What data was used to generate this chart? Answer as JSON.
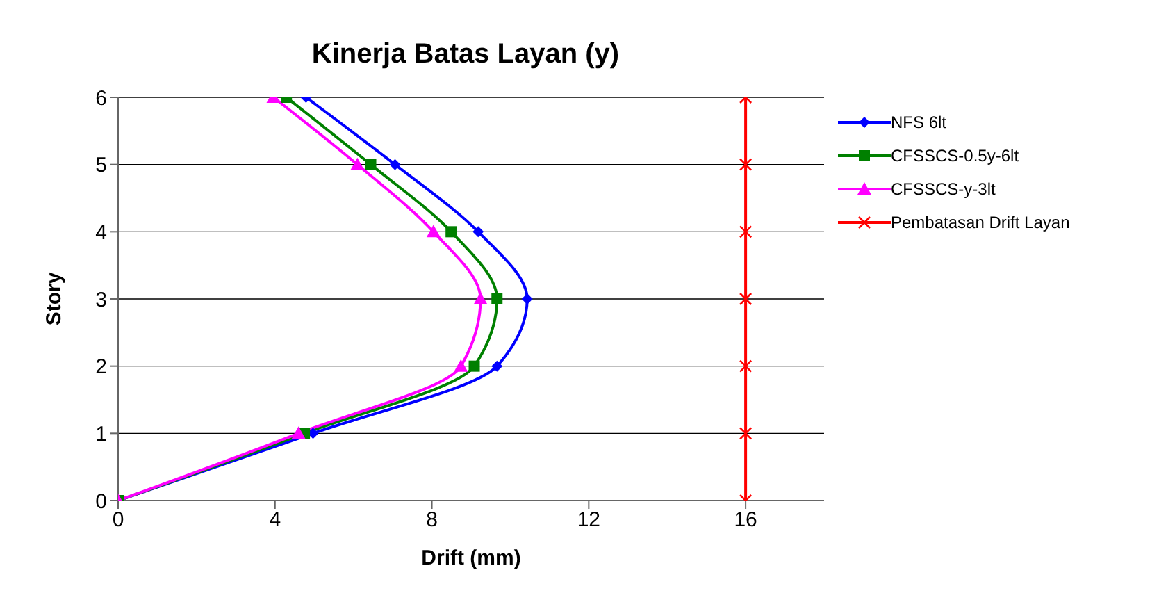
{
  "chart_data": {
    "type": "line",
    "title": "Kinerja Batas Layan (y)",
    "xlabel": "Drift (mm)",
    "ylabel": "Story",
    "xlim": [
      0,
      18
    ],
    "xticks": [
      0,
      4,
      8,
      12,
      16
    ],
    "ylim": [
      0,
      6
    ],
    "yticks": [
      0,
      1,
      2,
      3,
      4,
      5,
      6
    ],
    "grid": "y",
    "legend": "right",
    "line_style": "solid",
    "series": [
      {
        "name": "NFS 6lt",
        "color": "#0000ff",
        "marker": "diamond",
        "x": [
          0,
          4.97,
          9.66,
          10.43,
          9.18,
          7.06,
          4.79
        ],
        "values": [
          0,
          1,
          2,
          3,
          4,
          5,
          6
        ]
      },
      {
        "name": "CFSSCS-0.5y-6lt",
        "color": "#008000",
        "marker": "square",
        "x": [
          0,
          4.75,
          9.08,
          9.66,
          8.49,
          6.44,
          4.29
        ],
        "values": [
          0,
          1,
          2,
          3,
          4,
          5,
          6
        ]
      },
      {
        "name": "CFSSCS-y-3lt",
        "color": "#ff00ff",
        "marker": "triangle",
        "x": [
          0,
          4.6,
          8.74,
          9.24,
          8.04,
          6.1,
          3.96
        ],
        "values": [
          0,
          1,
          2,
          3,
          4,
          5,
          6
        ]
      },
      {
        "name": "Pembatasan Drift Layan",
        "color": "#ff0000",
        "marker": "cross",
        "x": [
          16,
          16,
          16,
          16,
          16,
          16,
          16
        ],
        "values": [
          0,
          1,
          2,
          3,
          4,
          5,
          6
        ]
      }
    ]
  }
}
